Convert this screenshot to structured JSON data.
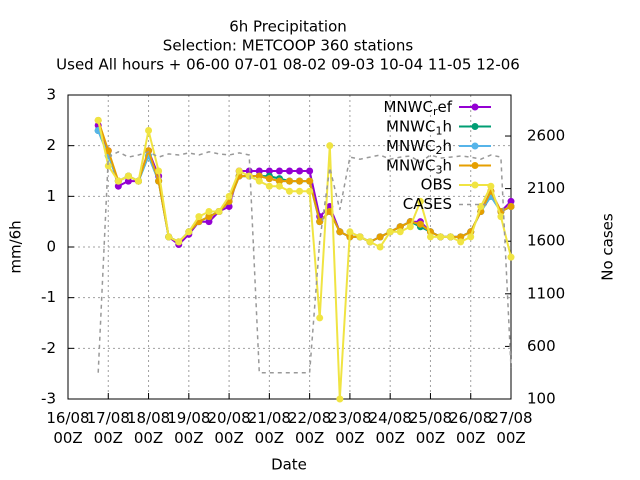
{
  "chart_data": {
    "type": "line",
    "title": [
      "6h Precipitation",
      "Selection: METCOOP     360 stations",
      "Used  All hours + 06-00 07-01 08-02 09-03 10-04 11-05 12-06"
    ],
    "x_label": "Date",
    "y_label": "mm/6h",
    "y2_label": "No cases",
    "x": [
      "16/08 18Z",
      "17/08 00Z",
      "17/08 06Z",
      "17/08 12Z",
      "17/08 18Z",
      "18/08 00Z",
      "18/08 06Z",
      "18/08 12Z",
      "18/08 18Z",
      "19/08 00Z",
      "19/08 06Z",
      "19/08 12Z",
      "19/08 18Z",
      "20/08 00Z",
      "20/08 06Z",
      "20/08 12Z",
      "20/08 18Z",
      "21/08 00Z",
      "21/08 06Z",
      "21/08 12Z",
      "21/08 18Z",
      "22/08 00Z",
      "22/08 06Z",
      "22/08 12Z",
      "22/08 18Z",
      "23/08 00Z",
      "23/08 06Z",
      "23/08 12Z",
      "23/08 18Z",
      "24/08 00Z",
      "24/08 06Z",
      "24/08 12Z",
      "24/08 18Z",
      "25/08 00Z",
      "25/08 06Z",
      "25/08 12Z",
      "25/08 18Z",
      "26/08 00Z",
      "26/08 06Z",
      "26/08 12Z",
      "26/08 18Z",
      "27/08 00Z"
    ],
    "xlim": [
      "16/08 00Z",
      "27/08 00Z"
    ],
    "xticks": [
      "16/08 00Z",
      "17/08 00Z",
      "18/08 00Z",
      "19/08 00Z",
      "20/08 00Z",
      "21/08 00Z",
      "22/08 00Z",
      "23/08 00Z",
      "24/08 00Z",
      "25/08 00Z",
      "26/08 00Z",
      "27/08 00Z"
    ],
    "ylim": [
      -3,
      3
    ],
    "yticks": [
      -3,
      -2,
      -1,
      0,
      1,
      2,
      3
    ],
    "y2lim": [
      100,
      2990
    ],
    "y2ticks": [
      100,
      600,
      1100,
      1600,
      2100,
      2600
    ],
    "grid": true,
    "legend": "top-right",
    "series": [
      {
        "name": "MNWC_ref",
        "color": "#9400d3",
        "values": [
          2.4,
          1.9,
          1.2,
          1.3,
          1.3,
          1.9,
          1.4,
          0.2,
          0.05,
          0.25,
          0.5,
          0.5,
          0.7,
          0.8,
          1.5,
          1.5,
          1.5,
          1.5,
          1.5,
          1.5,
          1.5,
          1.5,
          0.6,
          0.8,
          0.3,
          0.2,
          0.2,
          0.1,
          0.2,
          0.3,
          0.4,
          0.5,
          0.5,
          0.3,
          0.2,
          0.2,
          0.2,
          0.3,
          0.7,
          1.1,
          0.7,
          0.9
        ]
      },
      {
        "name": "MNWC_1h",
        "color": "#009e73",
        "values": [
          2.3,
          1.8,
          1.3,
          1.4,
          1.3,
          1.8,
          1.3,
          0.2,
          0.1,
          0.3,
          0.5,
          0.6,
          0.7,
          0.9,
          1.4,
          1.4,
          1.4,
          1.4,
          1.35,
          1.3,
          1.3,
          1.3,
          0.5,
          0.7,
          0.3,
          0.2,
          0.2,
          0.1,
          0.2,
          0.3,
          0.4,
          0.5,
          0.4,
          0.3,
          0.2,
          0.2,
          0.2,
          0.3,
          0.7,
          1.0,
          0.7,
          0.8
        ]
      },
      {
        "name": "MNWC_2h",
        "color": "#56b4e9",
        "values": [
          2.3,
          1.8,
          1.3,
          1.4,
          1.3,
          1.8,
          1.3,
          0.2,
          0.1,
          0.3,
          0.5,
          0.6,
          0.7,
          0.9,
          1.4,
          1.4,
          1.4,
          1.35,
          1.3,
          1.3,
          1.3,
          1.3,
          0.5,
          0.7,
          0.3,
          0.2,
          0.2,
          0.1,
          0.2,
          0.3,
          0.4,
          0.5,
          0.45,
          0.3,
          0.2,
          0.2,
          0.2,
          0.3,
          0.7,
          1.0,
          0.7,
          0.8
        ]
      },
      {
        "name": "MNWC_3h",
        "color": "#e69f00",
        "values": [
          2.5,
          1.9,
          1.3,
          1.4,
          1.3,
          1.9,
          1.3,
          0.2,
          0.1,
          0.3,
          0.5,
          0.6,
          0.7,
          0.9,
          1.4,
          1.4,
          1.4,
          1.35,
          1.3,
          1.3,
          1.3,
          1.3,
          0.5,
          0.7,
          0.3,
          0.2,
          0.2,
          0.1,
          0.2,
          0.3,
          0.4,
          0.5,
          0.45,
          0.3,
          0.2,
          0.2,
          0.2,
          0.3,
          0.7,
          1.1,
          0.7,
          0.8
        ]
      },
      {
        "name": "OBS",
        "color": "#f0e442",
        "values": [
          2.5,
          1.6,
          1.3,
          1.4,
          1.3,
          2.3,
          1.5,
          0.2,
          0.1,
          0.3,
          0.6,
          0.7,
          0.7,
          1.0,
          1.5,
          1.4,
          1.3,
          1.2,
          1.2,
          1.1,
          1.1,
          1.1,
          -1.4,
          2.0,
          -3.0,
          0.3,
          0.2,
          0.1,
          0.0,
          0.3,
          0.3,
          0.4,
          0.9,
          0.2,
          0.2,
          0.2,
          0.1,
          0.2,
          0.8,
          1.2,
          0.6,
          -0.2
        ]
      },
      {
        "name": "CASES",
        "color": "#999999",
        "axis": "y2",
        "dashed": true,
        "values": [
          350,
          2400,
          2450,
          2400,
          2420,
          2450,
          2400,
          2430,
          2420,
          2440,
          2420,
          2450,
          2430,
          2420,
          2440,
          2420,
          350,
          350,
          350,
          350,
          350,
          350,
          1600,
          2300,
          1900,
          2400,
          2380,
          2400,
          2420,
          2380,
          2400,
          2410,
          2350,
          2420,
          2390,
          2400,
          2410,
          2400,
          2380,
          2420,
          2400,
          400
        ]
      }
    ]
  }
}
